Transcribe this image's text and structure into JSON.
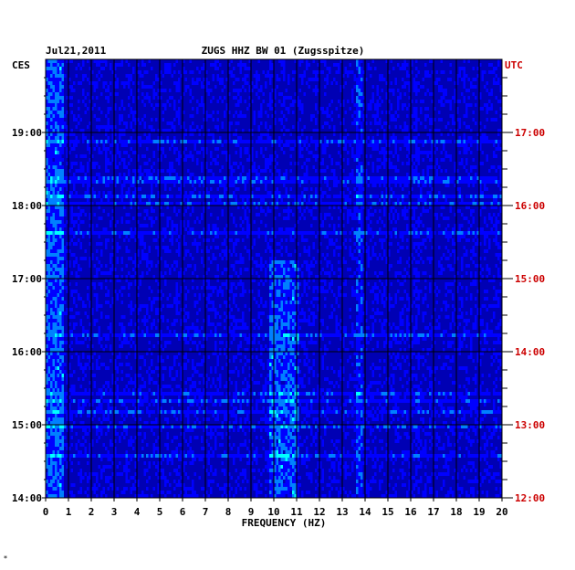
{
  "chart_data": {
    "type": "heatmap",
    "date": "Jul21,2011",
    "title": "ZUGS HHZ BW 01 (Zugsspitze)",
    "left_axis_label": "CES",
    "right_axis_label": "UTC",
    "xlabel": "FREQUENCY (HZ)",
    "x_ticks": [
      "0",
      "1",
      "2",
      "3",
      "4",
      "5",
      "6",
      "7",
      "8",
      "9",
      "10",
      "11",
      "12",
      "13",
      "14",
      "15",
      "16",
      "17",
      "18",
      "19",
      "20"
    ],
    "xlim": [
      0,
      20
    ],
    "left_ticks": [
      "19:00",
      "18:00",
      "17:00",
      "16:00",
      "15:00",
      "14:00"
    ],
    "right_ticks": [
      "17:00",
      "16:00",
      "15:00",
      "14:00",
      "13:00",
      "12:00"
    ],
    "time_range_local": [
      "14:00",
      "19:55"
    ],
    "colors": {
      "background": "#0000b4",
      "scale": [
        "#00008c",
        "#0000ff",
        "#0080ff",
        "#00ffff",
        "#ffff00",
        "#ff0000"
      ],
      "utc_text": "#cc0000"
    },
    "features": [
      {
        "freq_hz": 0.4,
        "note": "strong low-frequency energy, whole period"
      },
      {
        "freq_hz": 10.4,
        "note": "strong band roughly 14:00-17:00 local"
      },
      {
        "freq_hz": 13.7,
        "note": "persistent narrow line"
      },
      {
        "freq_hz": 16.2,
        "note": "intermittent line"
      }
    ]
  },
  "footer_mark": "*"
}
